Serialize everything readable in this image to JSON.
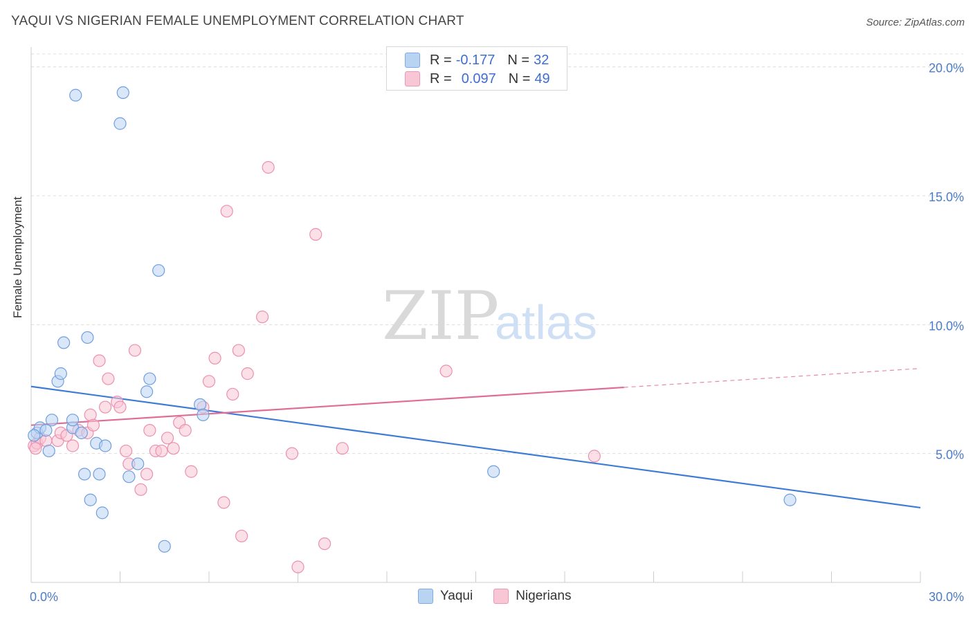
{
  "title": "YAQUI VS NIGERIAN FEMALE UNEMPLOYMENT CORRELATION CHART",
  "source": "Source: ZipAtlas.com",
  "watermark": {
    "zip": "ZIP",
    "atlas": "atlas"
  },
  "legend": {
    "r_label": "R =",
    "n_label": "N =",
    "series": [
      {
        "name": "Yaqui",
        "r": "-0.177",
        "n": "32",
        "fill": "#b9d3f3",
        "stroke": "#7eaae6"
      },
      {
        "name": "Nigerians",
        "r": "0.097",
        "n": "49",
        "fill": "#f9c6d6",
        "stroke": "#ee98b5"
      }
    ]
  },
  "chart_data": {
    "type": "scatter",
    "xlabel": "",
    "ylabel": "Female Unemployment",
    "xlim": [
      0,
      30
    ],
    "ylim": [
      0,
      20.5
    ],
    "x_tick_labels": [
      "0.0%",
      "30.0%"
    ],
    "y_ticks": [
      5,
      10,
      15,
      20
    ],
    "y_tick_labels": [
      "5.0%",
      "10.0%",
      "15.0%",
      "20.0%"
    ],
    "grid": true,
    "legend_position": "top-center",
    "series": [
      {
        "name": "Yaqui",
        "color": "#3e7bd6",
        "trend": {
          "x": [
            0,
            30
          ],
          "y": [
            7.6,
            2.9
          ],
          "solid_to": 30
        },
        "points": [
          [
            0.2,
            5.8
          ],
          [
            0.3,
            6.0
          ],
          [
            0.5,
            5.9
          ],
          [
            0.6,
            5.1
          ],
          [
            0.7,
            6.3
          ],
          [
            0.9,
            7.8
          ],
          [
            1.0,
            8.1
          ],
          [
            1.1,
            9.3
          ],
          [
            1.4,
            6.0
          ],
          [
            1.4,
            6.3
          ],
          [
            1.5,
            18.9
          ],
          [
            1.7,
            5.8
          ],
          [
            1.8,
            4.2
          ],
          [
            1.9,
            9.5
          ],
          [
            2.0,
            3.2
          ],
          [
            2.2,
            5.4
          ],
          [
            2.3,
            4.2
          ],
          [
            2.4,
            2.7
          ],
          [
            2.5,
            5.3
          ],
          [
            3.0,
            17.8
          ],
          [
            3.1,
            19.0
          ],
          [
            3.3,
            4.1
          ],
          [
            3.6,
            4.6
          ],
          [
            3.9,
            7.4
          ],
          [
            4.0,
            7.9
          ],
          [
            4.3,
            12.1
          ],
          [
            4.5,
            1.4
          ],
          [
            5.7,
            6.9
          ],
          [
            5.8,
            6.5
          ],
          [
            15.6,
            4.3
          ],
          [
            25.6,
            3.2
          ],
          [
            0.1,
            5.7
          ]
        ]
      },
      {
        "name": "Nigerians",
        "color": "#e06c98",
        "trend": {
          "x": [
            0,
            30
          ],
          "y": [
            6.1,
            8.3
          ],
          "solid_to": 20
        },
        "points": [
          [
            0.1,
            5.3
          ],
          [
            0.2,
            5.4
          ],
          [
            0.3,
            5.6
          ],
          [
            0.5,
            5.5
          ],
          [
            0.9,
            5.5
          ],
          [
            1.0,
            5.8
          ],
          [
            1.2,
            5.7
          ],
          [
            1.4,
            5.3
          ],
          [
            1.6,
            5.9
          ],
          [
            1.9,
            5.8
          ],
          [
            2.0,
            6.5
          ],
          [
            2.1,
            6.1
          ],
          [
            2.3,
            8.6
          ],
          [
            2.5,
            6.8
          ],
          [
            2.6,
            7.9
          ],
          [
            2.9,
            7.0
          ],
          [
            3.0,
            6.8
          ],
          [
            3.2,
            5.1
          ],
          [
            3.3,
            4.6
          ],
          [
            3.5,
            9.0
          ],
          [
            3.7,
            3.6
          ],
          [
            3.9,
            4.2
          ],
          [
            4.0,
            5.9
          ],
          [
            4.2,
            5.1
          ],
          [
            4.4,
            5.1
          ],
          [
            4.6,
            5.6
          ],
          [
            4.8,
            5.2
          ],
          [
            5.0,
            6.2
          ],
          [
            5.2,
            5.9
          ],
          [
            5.4,
            4.3
          ],
          [
            5.8,
            6.8
          ],
          [
            6.0,
            7.8
          ],
          [
            6.2,
            8.7
          ],
          [
            6.5,
            3.1
          ],
          [
            6.6,
            14.4
          ],
          [
            6.8,
            7.3
          ],
          [
            7.0,
            9.0
          ],
          [
            7.1,
            1.8
          ],
          [
            7.3,
            8.1
          ],
          [
            7.8,
            10.3
          ],
          [
            8.0,
            16.1
          ],
          [
            8.8,
            5.0
          ],
          [
            9.0,
            0.6
          ],
          [
            9.6,
            13.5
          ],
          [
            9.9,
            1.5
          ],
          [
            10.5,
            5.2
          ],
          [
            14.0,
            8.2
          ],
          [
            19.0,
            4.9
          ],
          [
            0.15,
            5.2
          ]
        ]
      }
    ]
  }
}
